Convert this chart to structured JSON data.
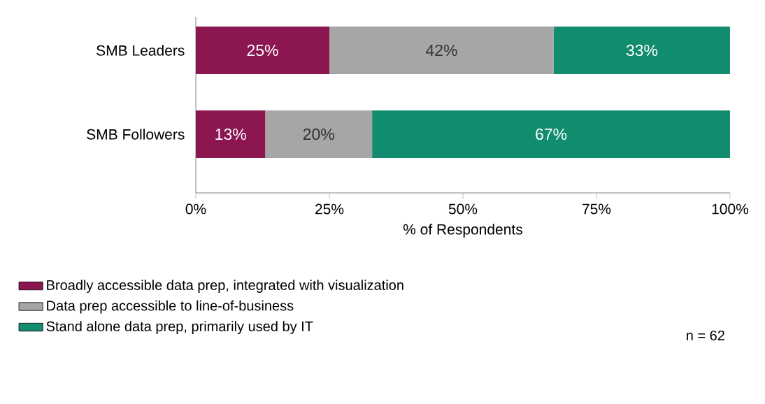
{
  "chart_data": {
    "type": "bar",
    "orientation": "horizontal",
    "stacked": true,
    "categories": [
      "SMB Leaders",
      "SMB Followers"
    ],
    "series": [
      {
        "name": "Broadly accessible data prep, integrated with visualization",
        "color": "#8b1650",
        "values": [
          25,
          13
        ],
        "value_labels": [
          "25%",
          "13%"
        ]
      },
      {
        "name": "Data prep accessible to line-of-business",
        "color": "#a6a6a6",
        "values": [
          42,
          20
        ],
        "value_labels": [
          "42%",
          "20%"
        ]
      },
      {
        "name": "Stand alone data prep, primarily used by IT",
        "color": "#128c6e",
        "values": [
          33,
          67
        ],
        "value_labels": [
          "33%",
          "67%"
        ]
      }
    ],
    "xlim": [
      0,
      100
    ],
    "xticks": [
      {
        "value": 0,
        "label": "0%"
      },
      {
        "value": 25,
        "label": "25%"
      },
      {
        "value": 50,
        "label": "50%"
      },
      {
        "value": 75,
        "label": "75%"
      },
      {
        "value": 100,
        "label": "100%"
      }
    ],
    "xlabel": "% of Respondents",
    "legend": "bottom",
    "grid": false,
    "annotations": [
      "n = 62"
    ]
  }
}
